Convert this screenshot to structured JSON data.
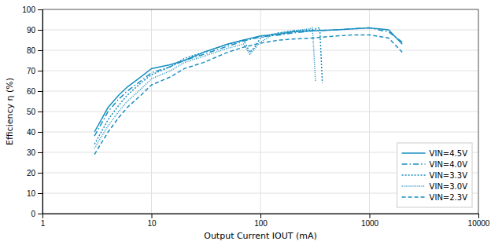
{
  "chart_data": {
    "type": "line",
    "x_label": "Output Current IOUT (mA)",
    "y_label": "Efficiency η (%)",
    "log": "x",
    "grid": true,
    "legend": "lower right",
    "color": "#1a8fc1",
    "xlim": [
      1,
      10000
    ],
    "ylim": [
      0,
      100
    ],
    "xticks": [
      1,
      10,
      100,
      1000,
      10000
    ],
    "yticks": [
      0,
      10,
      20,
      30,
      40,
      50,
      60,
      70,
      80,
      90,
      100
    ],
    "series": [
      {
        "name": "VIN=4.5V",
        "line_style": "solid",
        "x": [
          3,
          4,
          5,
          6,
          8,
          10,
          15,
          20,
          30,
          50,
          70,
          100,
          150,
          200,
          300,
          500,
          700,
          1000,
          1500,
          2000
        ],
        "values": [
          40,
          52,
          58,
          62,
          67,
          71,
          73,
          75,
          79,
          83,
          85,
          87,
          88,
          89,
          89.5,
          90,
          90.5,
          91,
          90,
          83
        ]
      },
      {
        "name": "VIN=4.0V",
        "line_style": "dashdot",
        "x": [
          3,
          4,
          5,
          6,
          8,
          10,
          15,
          20,
          30,
          50,
          70,
          100,
          150,
          200,
          300,
          500,
          700,
          1000,
          1500,
          2000
        ],
        "values": [
          38,
          50,
          56,
          60,
          65,
          69,
          72,
          75,
          78,
          82,
          84.5,
          86.5,
          87.5,
          88.5,
          89.5,
          90,
          90.5,
          91,
          89,
          84
        ]
      },
      {
        "name": "VIN=3.3V",
        "line_style": "dotted",
        "x": [
          3,
          4,
          5,
          6,
          8,
          10,
          15,
          20,
          30,
          50,
          70,
          80,
          90,
          100,
          130,
          150,
          200,
          300,
          350,
          370
        ],
        "values": [
          34,
          46,
          53,
          58,
          64,
          68,
          72,
          76,
          79,
          83,
          85,
          79,
          82,
          86,
          88,
          88.5,
          89.5,
          90,
          91,
          64
        ]
      },
      {
        "name": "VIN=3.0V",
        "line_style": "densely-dotted",
        "x": [
          3,
          4,
          5,
          6,
          8,
          10,
          15,
          20,
          30,
          50,
          70,
          80,
          100,
          130,
          150,
          200,
          280,
          300,
          320
        ],
        "values": [
          32,
          43,
          50,
          55,
          61,
          66,
          70,
          74,
          77,
          81,
          83,
          78,
          84,
          87.5,
          88.5,
          89.5,
          90.5,
          91,
          65
        ]
      },
      {
        "name": "VIN=2.3V",
        "line_style": "dashed",
        "x": [
          3,
          4,
          5,
          6,
          8,
          10,
          15,
          20,
          30,
          50,
          70,
          100,
          150,
          200,
          300,
          500,
          700,
          1000,
          1500,
          2000
        ],
        "values": [
          29,
          40,
          47,
          52,
          58,
          63,
          67,
          71,
          74,
          79,
          81.5,
          83.5,
          85,
          85.5,
          86,
          87,
          87.5,
          87.5,
          86,
          79
        ]
      }
    ]
  }
}
